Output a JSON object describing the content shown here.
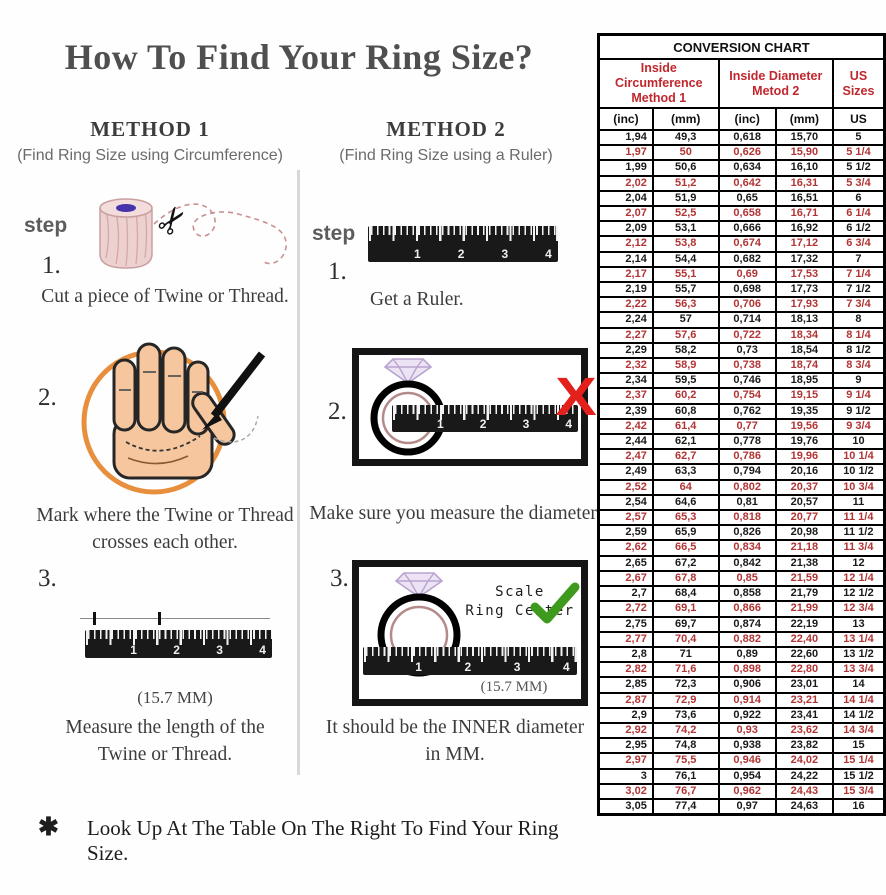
{
  "title": "How To Find Your Ring Size?",
  "ruler_labels": [
    "1",
    "2",
    "3",
    "4"
  ],
  "method1": {
    "heading": "METHOD 1",
    "subtitle": "(Find Ring Size using Circumference)",
    "step_label": "step",
    "step1_num": "1.",
    "step1_caption": "Cut a piece of Twine or Thread.",
    "step2_num": "2.",
    "step2_caption_line1": "Mark where the Twine or Thread",
    "step2_caption_line2": "crosses each other.",
    "step3_num": "3.",
    "step3_measurement": "(15.7 MM)",
    "step3_caption_line1": "Measure the length of the",
    "step3_caption_line2": "Twine or Thread."
  },
  "method2": {
    "heading": "METHOD 2",
    "subtitle": "(Find Ring Size using a Ruler)",
    "step_label": "step",
    "step1_num": "1.",
    "step1_caption": "Get a Ruler.",
    "step2_num": "2.",
    "step2_caption": "Make sure you measure the diameter.",
    "step3_num": "3.",
    "scale_note_line1": "Scale",
    "scale_note_line2": "Ring Center",
    "step3_measurement": "(15.7 MM)",
    "step3_caption_line1": "It should be the INNER diameter",
    "step3_caption_line2": "in MM."
  },
  "footnote": {
    "bullet": "✱",
    "text": "Look Up At The Table On The Right To Find Your Ring Size."
  },
  "table": {
    "title": "CONVERSION CHART",
    "group1_line1": "Inside Circumference",
    "group1_line2": "Method 1",
    "group2_line1": "Inside Diameter",
    "group2_line2": "Metod 2",
    "group3": "US Sizes",
    "subheaders": [
      "(inc)",
      "(mm)",
      "(inc)",
      "(mm)",
      "US"
    ],
    "rows": [
      [
        "1,94",
        "49,3",
        "0,618",
        "15,70",
        "5"
      ],
      [
        "1,97",
        "50",
        "0,626",
        "15,90",
        "5 1/4"
      ],
      [
        "1,99",
        "50,6",
        "0,634",
        "16,10",
        "5 1/2"
      ],
      [
        "2,02",
        "51,2",
        "0,642",
        "16,31",
        "5 3/4"
      ],
      [
        "2,04",
        "51,9",
        "0,65",
        "16,51",
        "6"
      ],
      [
        "2,07",
        "52,5",
        "0,658",
        "16,71",
        "6 1/4"
      ],
      [
        "2,09",
        "53,1",
        "0,666",
        "16,92",
        "6 1/2"
      ],
      [
        "2,12",
        "53,8",
        "0,674",
        "17,12",
        "6 3/4"
      ],
      [
        "2,14",
        "54,4",
        "0,682",
        "17,32",
        "7"
      ],
      [
        "2,17",
        "55,1",
        "0,69",
        "17,53",
        "7 1/4"
      ],
      [
        "2,19",
        "55,7",
        "0,698",
        "17,73",
        "7 1/2"
      ],
      [
        "2,22",
        "56,3",
        "0,706",
        "17,93",
        "7 3/4"
      ],
      [
        "2,24",
        "57",
        "0,714",
        "18,13",
        "8"
      ],
      [
        "2,27",
        "57,6",
        "0,722",
        "18,34",
        "8 1/4"
      ],
      [
        "2,29",
        "58,2",
        "0,73",
        "18,54",
        "8 1/2"
      ],
      [
        "2,32",
        "58,9",
        "0,738",
        "18,74",
        "8 3/4"
      ],
      [
        "2,34",
        "59,5",
        "0,746",
        "18,95",
        "9"
      ],
      [
        "2,37",
        "60,2",
        "0,754",
        "19,15",
        "9 1/4"
      ],
      [
        "2,39",
        "60,8",
        "0,762",
        "19,35",
        "9 1/2"
      ],
      [
        "2,42",
        "61,4",
        "0,77",
        "19,56",
        "9 3/4"
      ],
      [
        "2,44",
        "62,1",
        "0,778",
        "19,76",
        "10"
      ],
      [
        "2,47",
        "62,7",
        "0,786",
        "19,96",
        "10 1/4"
      ],
      [
        "2,49",
        "63,3",
        "0,794",
        "20,16",
        "10 1/2"
      ],
      [
        "2,52",
        "64",
        "0,802",
        "20,37",
        "10 3/4"
      ],
      [
        "2,54",
        "64,6",
        "0,81",
        "20,57",
        "11"
      ],
      [
        "2,57",
        "65,3",
        "0,818",
        "20,77",
        "11 1/4"
      ],
      [
        "2,59",
        "65,9",
        "0,826",
        "20,98",
        "11 1/2"
      ],
      [
        "2,62",
        "66,5",
        "0,834",
        "21,18",
        "11 3/4"
      ],
      [
        "2,65",
        "67,2",
        "0,842",
        "21,38",
        "12"
      ],
      [
        "2,67",
        "67,8",
        "0,85",
        "21,59",
        "12 1/4"
      ],
      [
        "2,7",
        "68,4",
        "0,858",
        "21,79",
        "12 1/2"
      ],
      [
        "2,72",
        "69,1",
        "0,866",
        "21,99",
        "12 3/4"
      ],
      [
        "2,75",
        "69,7",
        "0,874",
        "22,19",
        "13"
      ],
      [
        "2,77",
        "70,4",
        "0,882",
        "22,40",
        "13 1/4"
      ],
      [
        "2,8",
        "71",
        "0,89",
        "22,60",
        "13 1/2"
      ],
      [
        "2,82",
        "71,6",
        "0,898",
        "22,80",
        "13 3/4"
      ],
      [
        "2,85",
        "72,3",
        "0,906",
        "23,01",
        "14"
      ],
      [
        "2,87",
        "72,9",
        "0,914",
        "23,21",
        "14 1/4"
      ],
      [
        "2,9",
        "73,6",
        "0,922",
        "23,41",
        "14 1/2"
      ],
      [
        "2,92",
        "74,2",
        "0,93",
        "23,62",
        "14 3/4"
      ],
      [
        "2,95",
        "74,8",
        "0,938",
        "23,82",
        "15"
      ],
      [
        "2,97",
        "75,5",
        "0,946",
        "24,02",
        "15 1/4"
      ],
      [
        "3",
        "76,1",
        "0,954",
        "24,22",
        "15 1/2"
      ],
      [
        "3,02",
        "76,7",
        "0,962",
        "24,43",
        "15 3/4"
      ],
      [
        "3,05",
        "77,4",
        "0,97",
        "24,63",
        "16"
      ]
    ]
  },
  "colors": {
    "header_red": "#c0272d",
    "row_red": "#b23434",
    "x_red": "#e2201c",
    "check_green": "#3e9a1c",
    "circle_orange": "#e78f3c",
    "ring_inner_pink": "#b48a8a",
    "diamond_lavender": "#b9a4cf"
  }
}
